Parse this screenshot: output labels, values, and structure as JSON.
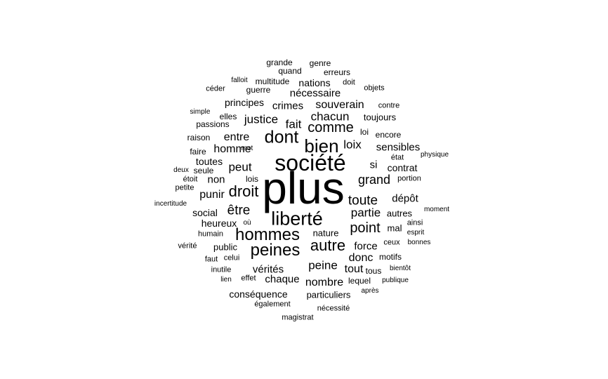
{
  "word_cloud": {
    "text_color": "#000000",
    "background": "#ffffff",
    "words": [
      {
        "text": "plus",
        "weight": 100
      },
      {
        "text": "société",
        "weight": 54
      },
      {
        "text": "liberté",
        "weight": 44
      },
      {
        "text": "bien",
        "weight": 42
      },
      {
        "text": "dont",
        "weight": 40
      },
      {
        "text": "hommes",
        "weight": 39
      },
      {
        "text": "peines",
        "weight": 38
      },
      {
        "text": "droit",
        "weight": 36
      },
      {
        "text": "autre",
        "weight": 36
      },
      {
        "text": "comme",
        "weight": 33
      },
      {
        "text": "point",
        "weight": 33
      },
      {
        "text": "être",
        "weight": 31
      },
      {
        "text": "toute",
        "weight": 31
      },
      {
        "text": "grand",
        "weight": 29
      },
      {
        "text": "chacun",
        "weight": 27
      },
      {
        "text": "justice",
        "weight": 27
      },
      {
        "text": "peut",
        "weight": 27
      },
      {
        "text": "partie",
        "weight": 27
      },
      {
        "text": "fait",
        "weight": 27
      },
      {
        "text": "loix",
        "weight": 27
      },
      {
        "text": "peine",
        "weight": 27
      },
      {
        "text": "souverain",
        "weight": 25
      },
      {
        "text": "punir",
        "weight": 25
      },
      {
        "text": "homme",
        "weight": 25
      },
      {
        "text": "entre",
        "weight": 25
      },
      {
        "text": "donc",
        "weight": 25
      },
      {
        "text": "tout",
        "weight": 25
      },
      {
        "text": "nombre",
        "weight": 25
      },
      {
        "text": "dépôt",
        "weight": 24
      },
      {
        "text": "sensibles",
        "weight": 24
      },
      {
        "text": "crimes",
        "weight": 24
      },
      {
        "text": "nécessaire",
        "weight": 24
      },
      {
        "text": "vérités",
        "weight": 24
      },
      {
        "text": "chaque",
        "weight": 24
      },
      {
        "text": "si",
        "weight": 24
      },
      {
        "text": "force",
        "weight": 24
      },
      {
        "text": "non",
        "weight": 24
      },
      {
        "text": "social",
        "weight": 22
      },
      {
        "text": "heureux",
        "weight": 22
      },
      {
        "text": "conséquence",
        "weight": 22
      },
      {
        "text": "contrat",
        "weight": 22
      },
      {
        "text": "toutes",
        "weight": 22
      },
      {
        "text": "principes",
        "weight": 22
      },
      {
        "text": "nations",
        "weight": 22
      },
      {
        "text": "toujours",
        "weight": 21
      },
      {
        "text": "nature",
        "weight": 21
      },
      {
        "text": "public",
        "weight": 21
      },
      {
        "text": "particuliers",
        "weight": 21
      },
      {
        "text": "mal",
        "weight": 21
      },
      {
        "text": "autres",
        "weight": 21
      },
      {
        "text": "lois",
        "weight": 20
      },
      {
        "text": "seule",
        "weight": 20
      },
      {
        "text": "encore",
        "weight": 20
      },
      {
        "text": "loi",
        "weight": 20
      },
      {
        "text": "lequel",
        "weight": 20
      },
      {
        "text": "tous",
        "weight": 20
      },
      {
        "text": "motifs",
        "weight": 20
      },
      {
        "text": "elles",
        "weight": 20
      },
      {
        "text": "passions",
        "weight": 20
      },
      {
        "text": "raison",
        "weight": 20
      },
      {
        "text": "faire",
        "weight": 20
      },
      {
        "text": "multitude",
        "weight": 20
      },
      {
        "text": "guerre",
        "weight": 20
      },
      {
        "text": "grande",
        "weight": 20
      },
      {
        "text": "genre",
        "weight": 20
      },
      {
        "text": "quand",
        "weight": 20
      },
      {
        "text": "erreurs",
        "weight": 20
      },
      {
        "text": "objets",
        "weight": 19
      },
      {
        "text": "contre",
        "weight": 19
      },
      {
        "text": "doit",
        "weight": 19
      },
      {
        "text": "céder",
        "weight": 19
      },
      {
        "text": "portion",
        "weight": 19
      },
      {
        "text": "état",
        "weight": 19
      },
      {
        "text": "ainsi",
        "weight": 19
      },
      {
        "text": "ceux",
        "weight": 19
      },
      {
        "text": "celui",
        "weight": 19
      },
      {
        "text": "faut",
        "weight": 19
      },
      {
        "text": "inutile",
        "weight": 19
      },
      {
        "text": "humain",
        "weight": 19
      },
      {
        "text": "effet",
        "weight": 19
      },
      {
        "text": "également",
        "weight": 19
      },
      {
        "text": "nécessité",
        "weight": 19
      },
      {
        "text": "magistrat",
        "weight": 19
      },
      {
        "text": "vérité",
        "weight": 19
      },
      {
        "text": "petite",
        "weight": 19
      },
      {
        "text": "étoit",
        "weight": 19
      },
      {
        "text": "deux",
        "weight": 18
      },
      {
        "text": "falloit",
        "weight": 18
      },
      {
        "text": "simple",
        "weight": 18
      },
      {
        "text": "mot",
        "weight": 18
      },
      {
        "text": "physique",
        "weight": 18
      },
      {
        "text": "incertitude",
        "weight": 18
      },
      {
        "text": "moment",
        "weight": 18
      },
      {
        "text": "esprit",
        "weight": 18
      },
      {
        "text": "bonnes",
        "weight": 18
      },
      {
        "text": "où",
        "weight": 18
      },
      {
        "text": "lien",
        "weight": 18
      },
      {
        "text": "bientôt",
        "weight": 18
      },
      {
        "text": "publique",
        "weight": 18
      },
      {
        "text": "après",
        "weight": 18
      }
    ]
  }
}
